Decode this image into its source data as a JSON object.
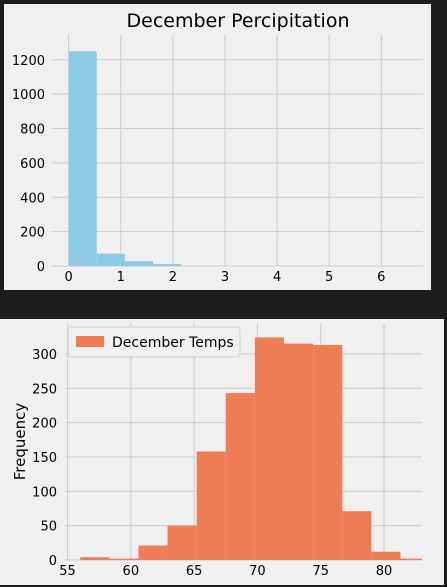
{
  "chart_data": [
    {
      "type": "bar",
      "title": "December Percipitation",
      "xlabel": "",
      "ylabel": "",
      "color": "#8ecae6",
      "xlim": [
        -0.3,
        6.8
      ],
      "ylim": [
        0,
        1350
      ],
      "xticks": [
        0,
        1,
        2,
        3,
        4,
        5,
        6
      ],
      "yticks": [
        0,
        200,
        400,
        600,
        800,
        1000,
        1200
      ],
      "grid": true,
      "bins": [
        {
          "x0": 0.0,
          "x1": 0.54,
          "value": 1250
        },
        {
          "x0": 0.54,
          "x1": 1.08,
          "value": 72
        },
        {
          "x0": 1.08,
          "x1": 1.62,
          "value": 28
        },
        {
          "x0": 1.62,
          "x1": 2.16,
          "value": 12
        },
        {
          "x0": 2.16,
          "x1": 2.7,
          "value": 0
        },
        {
          "x0": 2.7,
          "x1": 3.24,
          "value": 0
        },
        {
          "x0": 3.24,
          "x1": 3.78,
          "value": 0
        },
        {
          "x0": 3.78,
          "x1": 4.32,
          "value": 0
        },
        {
          "x0": 4.32,
          "x1": 4.86,
          "value": 0
        },
        {
          "x0": 4.86,
          "x1": 5.4,
          "value": 0
        }
      ]
    },
    {
      "type": "bar",
      "title": "",
      "xlabel": "",
      "ylabel": "Frequency",
      "color": "#f07c56",
      "legend": "December Temps",
      "legend_position": "top-left",
      "xlim": [
        54.8,
        83
      ],
      "ylim": [
        0,
        345
      ],
      "xticks": [
        55,
        60,
        65,
        70,
        75,
        80
      ],
      "yticks": [
        0,
        50,
        100,
        150,
        200,
        250,
        300
      ],
      "grid": true,
      "bins": [
        {
          "x0": 56,
          "x1": 58.3,
          "value": 4
        },
        {
          "x0": 58.3,
          "x1": 60.6,
          "value": 2
        },
        {
          "x0": 60.6,
          "x1": 62.9,
          "value": 21
        },
        {
          "x0": 62.9,
          "x1": 65.2,
          "value": 50
        },
        {
          "x0": 65.2,
          "x1": 67.5,
          "value": 158
        },
        {
          "x0": 67.5,
          "x1": 69.8,
          "value": 243
        },
        {
          "x0": 69.8,
          "x1": 72.1,
          "value": 324
        },
        {
          "x0": 72.1,
          "x1": 74.4,
          "value": 315
        },
        {
          "x0": 74.4,
          "x1": 76.7,
          "value": 313
        },
        {
          "x0": 76.7,
          "x1": 79.0,
          "value": 71
        },
        {
          "x0": 79.0,
          "x1": 81.3,
          "value": 12
        },
        {
          "x0": 81.3,
          "x1": 83.0,
          "value": 2
        }
      ]
    }
  ]
}
